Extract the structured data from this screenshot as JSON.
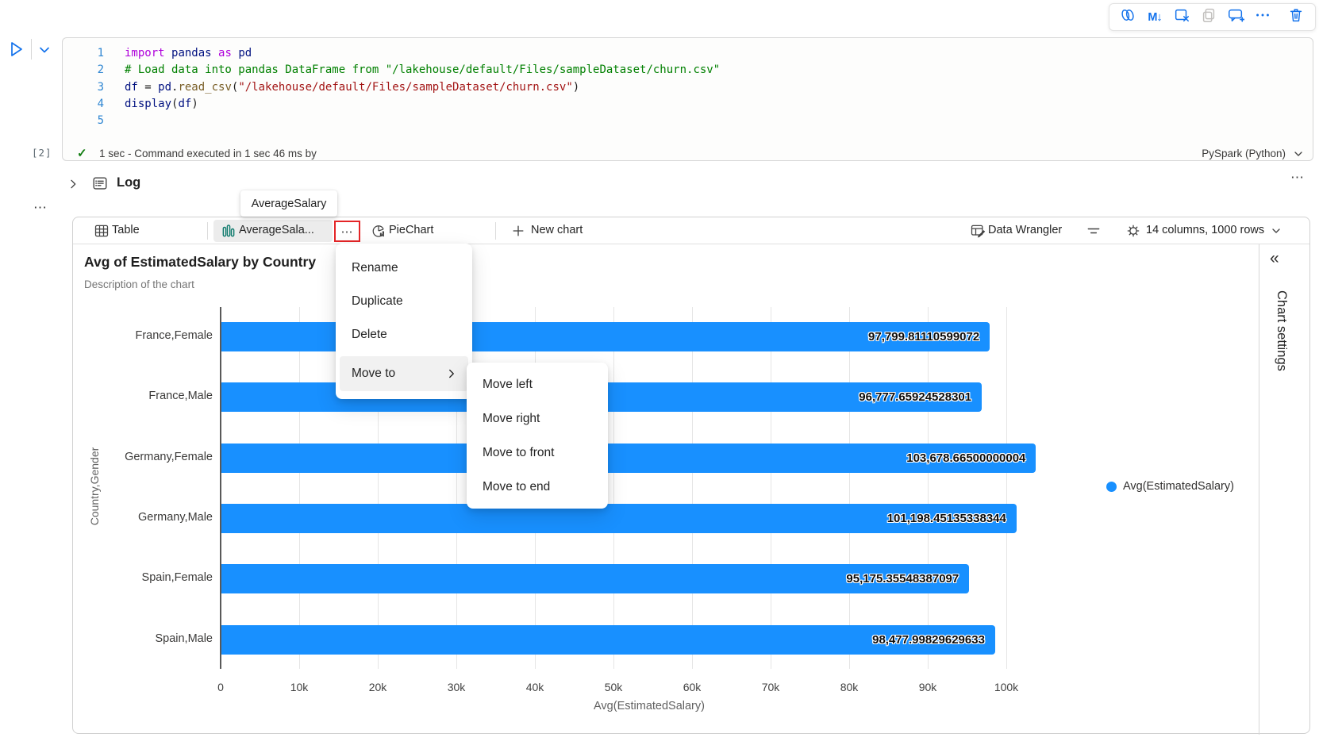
{
  "cell_toolbar": {
    "buttons": [
      "copilot",
      "markdown-cell",
      "clear-cell-output",
      "copy-cell",
      "add-comment",
      "more-options",
      "delete-cell"
    ],
    "markdown_glyph": "M↓",
    "more_glyph": "⋯"
  },
  "left_more_glyph": "⋯",
  "code_cell": {
    "execution_count": "[2]",
    "lines": [
      {
        "num": "1",
        "tokens": [
          [
            "kw",
            "import"
          ],
          [
            "pl",
            " "
          ],
          [
            "mod",
            "pandas"
          ],
          [
            "pl",
            " "
          ],
          [
            "kw",
            "as"
          ],
          [
            "pl",
            " "
          ],
          [
            "mod",
            "pd"
          ]
        ]
      },
      {
        "num": "2",
        "tokens": [
          [
            "com",
            "# Load data into pandas DataFrame from \"/lakehouse/default/Files/sampleDataset/churn.csv\""
          ]
        ]
      },
      {
        "num": "3",
        "tokens": [
          [
            "mod",
            "df"
          ],
          [
            "pl",
            " = "
          ],
          [
            "mod",
            "pd"
          ],
          [
            "pl",
            "."
          ],
          [
            "fn",
            "read_csv"
          ],
          [
            "pl",
            "("
          ],
          [
            "str",
            "\"/lakehouse/default/Files/sampleDataset/churn.csv\""
          ],
          [
            "pl",
            ")"
          ]
        ]
      },
      {
        "num": "4",
        "tokens": [
          [
            "mod",
            "display"
          ],
          [
            "pl",
            "("
          ],
          [
            "mod",
            "df"
          ],
          [
            "pl",
            ")"
          ]
        ]
      },
      {
        "num": "5",
        "tokens": []
      }
    ],
    "status_check": "✓",
    "status_text": "1 sec - Command executed in 1 sec 46 ms by",
    "kernel": "PySpark (Python)"
  },
  "log": {
    "label": "Log",
    "more_glyph": "⋯"
  },
  "tooltip": {
    "text": "AverageSalary"
  },
  "tab_bar": {
    "table_label": "Table",
    "chart_tab_label": "AverageSala...",
    "more_glyph": "⋯",
    "pie_label": "PieChart",
    "new_chart_label": "New chart",
    "data_wrangler_label": "Data Wrangler",
    "dims_label": "14 columns, 1000 rows"
  },
  "context_menu": {
    "items": [
      "Rename",
      "Duplicate",
      "Delete"
    ],
    "move_to_label": "Move to",
    "submenu_items": [
      "Move left",
      "Move right",
      "Move to front",
      "Move to end"
    ]
  },
  "chart_data": {
    "type": "bar",
    "orientation": "horizontal",
    "title": "Avg of EstimatedSalary by Country",
    "subtitle": "Description of the chart",
    "categories": [
      "France,Female",
      "France,Male",
      "Germany,Female",
      "Germany,Male",
      "Spain,Female",
      "Spain,Male"
    ],
    "values": [
      97799.81110599072,
      96777.65924528301,
      103678.66500000004,
      101198.45135338344,
      95175.35548387097,
      98477.99829629633
    ],
    "value_labels": [
      "97,799.81110599072",
      "96,777.65924528301",
      "103,678.66500000004",
      "101,198.45135338344",
      "95,175.35548387097",
      "98,477.99829629633"
    ],
    "xlabel": "Avg(EstimatedSalary)",
    "ylabel": "Country,Gender",
    "xlim": [
      0,
      105000
    ],
    "xticks": [
      "0",
      "10k",
      "20k",
      "30k",
      "40k",
      "50k",
      "60k",
      "70k",
      "80k",
      "90k",
      "100k"
    ],
    "grid": true,
    "legend_label": "Avg(EstimatedSalary)",
    "legend_position": "right",
    "bar_color": "#1890ff"
  },
  "sidebar": {
    "collapse_icon": "«",
    "title": "Chart settings"
  },
  "colors": {
    "accent": "#1372ec",
    "bar_blue": "#1890ff",
    "teal_icon": "#0e7a6c",
    "annotation_red": "#e42527",
    "check_green": "#107c10"
  }
}
